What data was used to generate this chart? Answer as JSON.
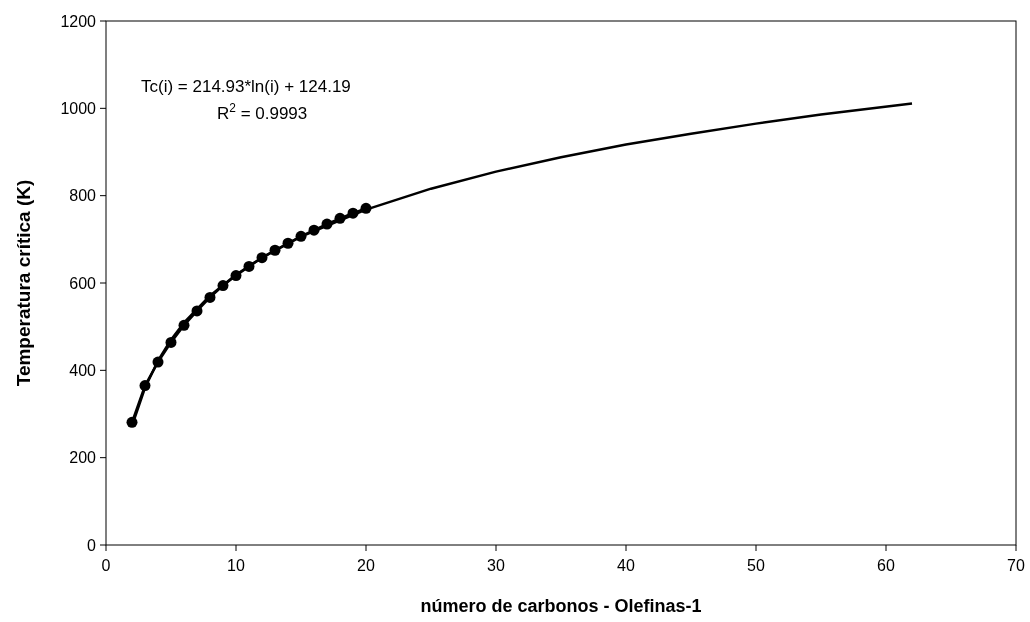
{
  "chart_data": {
    "type": "line",
    "xlabel": "número de carbonos - Olefinas-1",
    "ylabel": "Temperatura crítica (K)",
    "annotations": [
      "Tc(i) = 214.93*ln(i) + 124.19",
      "R$^{2}$ = 0.9993"
    ],
    "xlim": [
      0,
      70
    ],
    "xticks": [
      0,
      10,
      20,
      30,
      40,
      50,
      60,
      70
    ],
    "ylim": [
      0,
      1200
    ],
    "yticks": [
      0,
      200,
      400,
      600,
      800,
      1000,
      1200
    ],
    "grid": false,
    "series": [
      {
        "color": "#000000",
        "marker": "none",
        "x": [
          2,
          3,
          4,
          5,
          6,
          8,
          10,
          12,
          15,
          20,
          25,
          30,
          35,
          40,
          45,
          50,
          55,
          62
        ],
        "values": [
          273,
          360,
          422,
          470,
          509,
          571,
          619,
          658,
          706,
          768,
          816,
          855,
          888,
          917,
          942,
          965,
          986,
          1011
        ]
      },
      {
        "color": "#000000",
        "marker": "circle",
        "x": [
          2,
          3,
          4,
          5,
          6,
          7,
          8,
          9,
          10,
          11,
          12,
          13,
          14,
          15,
          16,
          17,
          18,
          19,
          20
        ],
        "values": [
          281,
          365,
          419,
          464,
          503,
          536,
          567,
          594,
          617,
          638,
          658,
          675,
          691,
          707,
          721,
          735,
          748,
          760,
          771
        ]
      }
    ]
  }
}
